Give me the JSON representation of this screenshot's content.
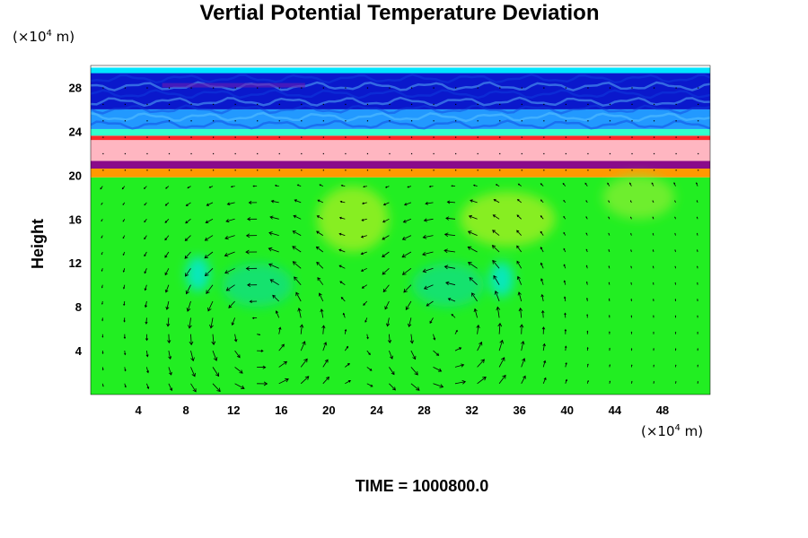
{
  "chart_data": {
    "type": "heatmap",
    "title": "Vertial Potential Temperature Deviation",
    "ylabel": "Height",
    "xlabel": "",
    "x_unit": "(×10",
    "y_unit": "(×10",
    "unit_exponent": "4",
    "unit_suffix": " m)",
    "xlim": [
      0,
      52
    ],
    "ylim": [
      0,
      30
    ],
    "x_ticks": [
      "4",
      "8",
      "12",
      "16",
      "20",
      "24",
      "28",
      "32",
      "36",
      "40",
      "44",
      "48"
    ],
    "y_ticks": [
      "4",
      "8",
      "12",
      "16",
      "20",
      "24",
      "28"
    ],
    "field_bands": [
      {
        "y_from": 0,
        "y_to": 19.8,
        "color": "#22ee22"
      },
      {
        "y_from": 19.8,
        "y_to": 20.6,
        "color": "#ff9900"
      },
      {
        "y_from": 20.6,
        "y_to": 21.3,
        "color": "#8a0a8a"
      },
      {
        "y_from": 21.3,
        "y_to": 23.2,
        "color": "#ffb6c1"
      },
      {
        "y_from": 23.2,
        "y_to": 23.6,
        "color": "#ff2a2a"
      },
      {
        "y_from": 23.6,
        "y_to": 24.2,
        "color": "#33ffcc"
      },
      {
        "y_from": 24.2,
        "y_to": 26.0,
        "color": "#2299ff"
      },
      {
        "y_from": 26.0,
        "y_to": 29.3,
        "color": "#0a18cc"
      },
      {
        "y_from": 29.3,
        "y_to": 29.8,
        "color": "#00e5ff"
      }
    ],
    "cells": [
      {
        "cx": 14,
        "cy": 6,
        "rx": 7,
        "ry": 10
      },
      {
        "cx": 30,
        "cy": 6,
        "rx": 6.5,
        "ry": 10
      }
    ]
  },
  "time_label": "TIME = 1000800.0"
}
